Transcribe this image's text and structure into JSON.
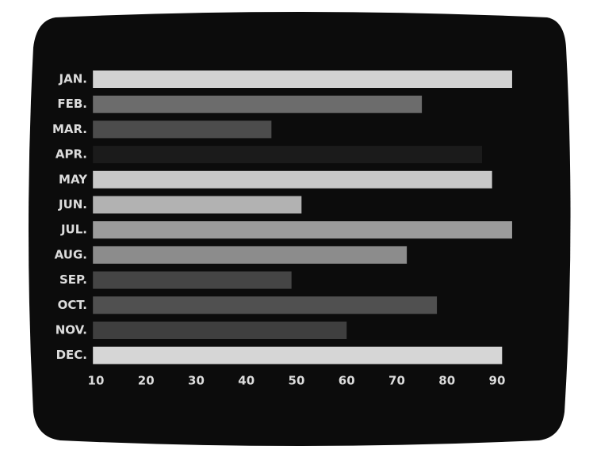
{
  "chart_data": {
    "type": "barh",
    "categories": [
      "JAN.",
      "FEB.",
      "MAR.",
      "APR.",
      "MAY",
      "JUN.",
      "JUL.",
      "AUG.",
      "SEP.",
      "OCT.",
      "NOV.",
      "DEC."
    ],
    "values": [
      93,
      75,
      45,
      87,
      89,
      51,
      93,
      72,
      49,
      78,
      60,
      91
    ],
    "colors": [
      "#d2d2d2",
      "#6c6c6c",
      "#4c4c4c",
      "#1b1b1b",
      "#c8c8c8",
      "#b2b2b2",
      "#9c9c9c",
      "#8c8c8c",
      "#454545",
      "#505050",
      "#3f3f3f",
      "#d6d6d6"
    ],
    "xlim": [
      9.4,
      95
    ],
    "xticks": [
      10,
      20,
      30,
      40,
      50,
      60,
      70,
      80,
      90
    ]
  }
}
